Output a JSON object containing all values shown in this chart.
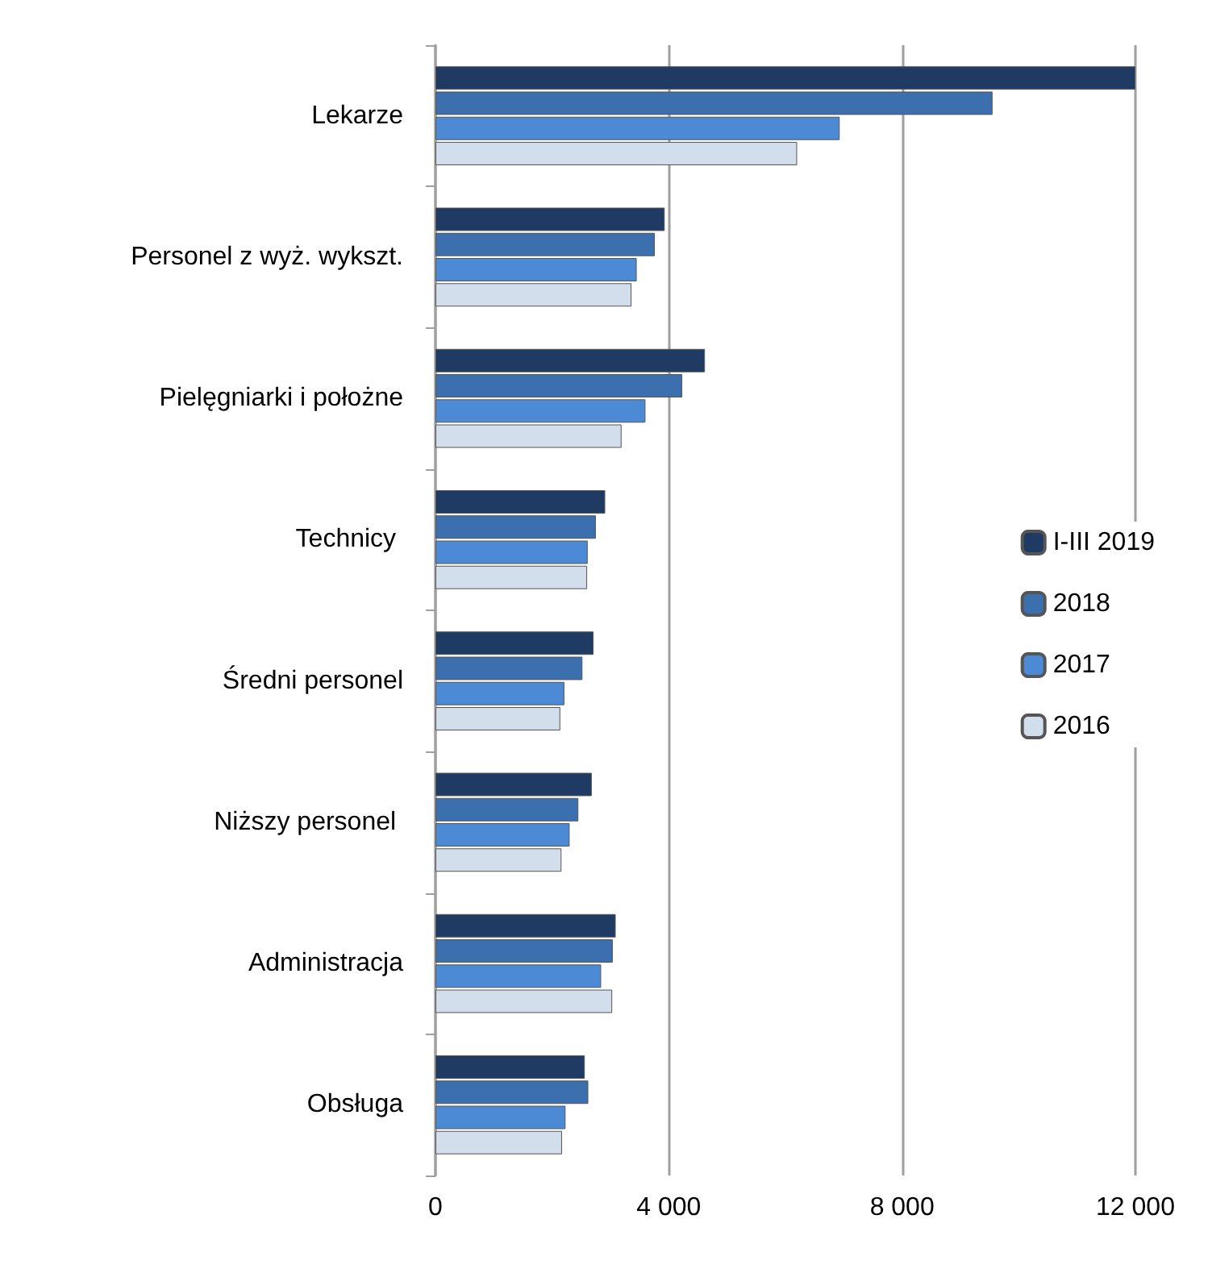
{
  "chart_data": {
    "type": "bar",
    "orientation": "horizontal",
    "categories": [
      "Lekarze",
      "Personel z wyż. wykszt.",
      "Pielęgniarki i położne",
      "Technicy ",
      "Średni personel",
      "Niższy personel ",
      "Administracja",
      "Obsługa"
    ],
    "series": [
      {
        "name": "I-III 2019",
        "color": "#1f3a63",
        "values": [
          12000,
          3930,
          4620,
          2910,
          2710,
          2680,
          3090,
          2560
        ]
      },
      {
        "name": "2018",
        "color": "#3b6fae",
        "values": [
          9550,
          3760,
          4230,
          2750,
          2520,
          2450,
          3040,
          2620
        ]
      },
      {
        "name": "2017",
        "color": "#4d8ad6",
        "values": [
          6930,
          3450,
          3600,
          2610,
          2210,
          2300,
          2840,
          2230
        ]
      },
      {
        "name": "2016",
        "color": "#d3deec",
        "values": [
          6200,
          3360,
          3190,
          2600,
          2140,
          2160,
          3030,
          2170
        ]
      }
    ],
    "xlim": [
      0,
      12000
    ],
    "xticks": [
      {
        "value": 0,
        "label": "0"
      },
      {
        "value": 4000,
        "label": "4 000"
      },
      {
        "value": 8000,
        "label": "8 000"
      },
      {
        "value": 12000,
        "label": "12 000"
      }
    ],
    "grid": "x",
    "legend": "right"
  }
}
